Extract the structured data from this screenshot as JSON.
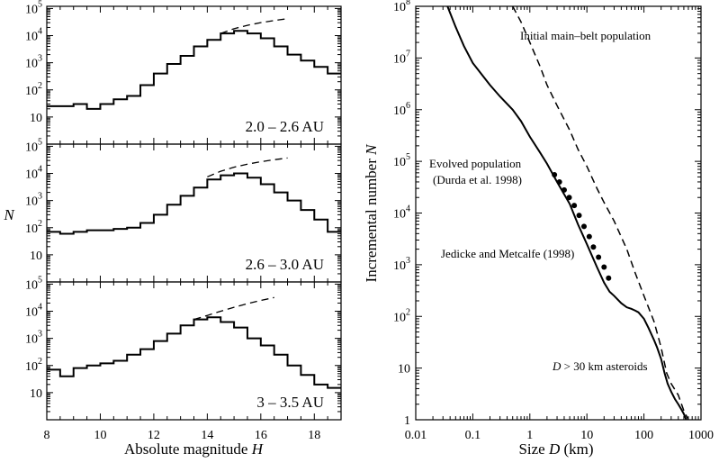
{
  "chart_data": [
    {
      "type": "histogram-step",
      "panel": "top",
      "label": "2.0 – 2.6 AU",
      "xlim": [
        8,
        19
      ],
      "ylog": true,
      "ylim": [
        1,
        100000
      ],
      "ytick_labels": [
        "10",
        "10^2",
        "10^3",
        "10^4",
        "10^5"
      ],
      "xtick_labels": [
        "8",
        "10",
        "12",
        "14",
        "16",
        "18"
      ],
      "bin_edges": [
        8,
        8.5,
        9,
        9.5,
        10,
        10.5,
        11,
        11.5,
        12,
        12.5,
        13,
        13.5,
        14,
        14.5,
        15,
        15.5,
        16,
        16.5,
        17,
        17.5,
        18,
        18.5,
        19
      ],
      "values": [
        25,
        25,
        30,
        20,
        30,
        45,
        60,
        150,
        400,
        900,
        1800,
        4000,
        7000,
        12000,
        15000,
        12000,
        8000,
        4000,
        2000,
        1200,
        700,
        400
      ],
      "dashed_curve": {
        "x": [
          14.5,
          15,
          15.5,
          16,
          16.5,
          17
        ],
        "y": [
          12000,
          18000,
          24000,
          30000,
          36000,
          42000
        ]
      }
    },
    {
      "type": "histogram-step",
      "panel": "middle",
      "label": "2.6 – 3.0 AU",
      "xlim": [
        8,
        19
      ],
      "ylog": true,
      "ylim": [
        1,
        100000
      ],
      "ytick_labels": [
        "10",
        "10^2",
        "10^3",
        "10^4",
        "10^5"
      ],
      "bin_edges": [
        8,
        8.5,
        9,
        9.5,
        10,
        10.5,
        11,
        11.5,
        12,
        12.5,
        13,
        13.5,
        14,
        14.5,
        15,
        15.5,
        16,
        16.5,
        17,
        17.5,
        18,
        18.5,
        19
      ],
      "values": [
        70,
        60,
        70,
        80,
        80,
        90,
        100,
        150,
        300,
        700,
        1500,
        3000,
        6000,
        8500,
        10000,
        7000,
        4000,
        2000,
        1000,
        450,
        200,
        70
      ],
      "dashed_curve": {
        "x": [
          14,
          14.5,
          15,
          15.5,
          16,
          16.5,
          17
        ],
        "y": [
          7500,
          12000,
          17000,
          22000,
          27000,
          32000,
          37000
        ]
      }
    },
    {
      "type": "histogram-step",
      "panel": "bottom",
      "label": "3 – 3.5 AU",
      "xlim": [
        8,
        19
      ],
      "ylog": true,
      "ylim": [
        1,
        100000
      ],
      "ytick_labels": [
        "10",
        "10^2",
        "10^3",
        "10^4",
        "10^5"
      ],
      "bin_edges": [
        8,
        8.5,
        9,
        9.5,
        10,
        10.5,
        11,
        11.5,
        12,
        12.5,
        13,
        13.5,
        14,
        14.5,
        15,
        15.5,
        16,
        16.5,
        17,
        17.5,
        18,
        18.5,
        19
      ],
      "values": [
        70,
        40,
        80,
        100,
        120,
        150,
        250,
        400,
        800,
        1500,
        3000,
        5000,
        6000,
        4000,
        2500,
        1000,
        550,
        250,
        100,
        45,
        20,
        15
      ],
      "dashed_curve": {
        "x": [
          13.5,
          14,
          14.5,
          15,
          15.5,
          16,
          16.5
        ],
        "y": [
          5000,
          7000,
          10000,
          14000,
          19000,
          25000,
          32000
        ]
      }
    },
    {
      "type": "line",
      "panel": "right",
      "xlabel": "Size D (km)",
      "ylabel": "Incremental number N",
      "xlog": true,
      "ylog": true,
      "xlim": [
        0.01,
        1000
      ],
      "ylim": [
        1,
        100000000
      ],
      "xtick_labels": [
        "0.01",
        "0.1",
        "1",
        "10",
        "100",
        "1000"
      ],
      "ytick_labels": [
        "1",
        "10",
        "10^2",
        "10^3",
        "10^4",
        "10^5",
        "10^6",
        "10^7",
        "10^8"
      ],
      "series": [
        {
          "label": "Evolved population (Durda et al. 1998)",
          "style": "solid",
          "x": [
            0.036,
            0.05,
            0.07,
            0.1,
            0.15,
            0.2,
            0.3,
            0.5,
            0.7,
            1,
            1.5,
            2,
            3,
            5,
            7,
            10,
            15,
            20,
            25,
            30,
            40,
            50,
            60,
            70,
            80,
            100,
            120,
            150,
            170,
            200,
            230,
            260,
            300,
            350,
            400,
            450,
            500,
            550
          ],
          "y": [
            100000000,
            40000000,
            17000000,
            8000000,
            4500000,
            3000000,
            1800000,
            1000000,
            600000,
            300000,
            150000,
            90000,
            40000,
            15000,
            6000,
            2500,
            900,
            450,
            300,
            250,
            180,
            150,
            140,
            130,
            120,
            90,
            60,
            35,
            25,
            15,
            8,
            5,
            3.5,
            2.5,
            2,
            1.6,
            1.3,
            1
          ]
        },
        {
          "label": "Initial main–belt population",
          "style": "dashed",
          "x": [
            0.5,
            0.7,
            1,
            1.5,
            2,
            3,
            5,
            7,
            10,
            15,
            20,
            30,
            50,
            70,
            100,
            150,
            200,
            250,
            300,
            400,
            500,
            600
          ],
          "y": [
            100000000,
            50000000,
            20000000,
            7000000,
            3000000,
            1200000,
            400000,
            170000,
            80000,
            30000,
            16000,
            7000,
            2000,
            700,
            250,
            80,
            25,
            8,
            5,
            3,
            1.5,
            1
          ]
        }
      ],
      "points_label": "Jedicke and Metcalfe (1998)",
      "points": {
        "x": [
          2.7,
          3.3,
          4.0,
          4.9,
          6.0,
          7.3,
          8.9,
          11,
          13,
          16,
          20,
          24
        ],
        "y": [
          55000,
          40000,
          28000,
          20000,
          14000,
          9000,
          5500,
          3500,
          2200,
          1400,
          900,
          550
        ]
      },
      "annotations": [
        "Initial main–belt population",
        "Evolved population",
        "(Durda et al. 1998)",
        "Jedicke and Metcalfe (1998)",
        "D > 30 km asteroids"
      ]
    }
  ],
  "left_axis": {
    "ylabel": "N",
    "xlabel": "Absolute magnitude H"
  }
}
